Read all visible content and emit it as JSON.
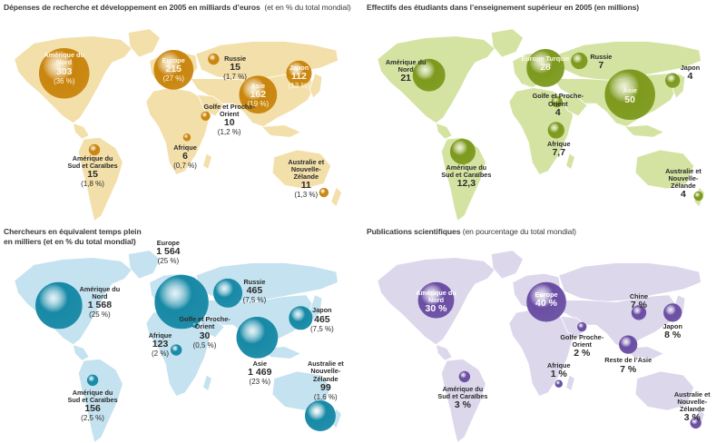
{
  "maps": [
    {
      "title": "Dépenses de recherche et développement en 2005 en milliards d’euros",
      "subtitle": "(et en % du total mondial)",
      "land_color": "#f3dfa9",
      "bubble_color": "#c9850e",
      "items": [
        {
          "name": "Amérique du Nord",
          "value": "303",
          "pct": "(36 %)"
        },
        {
          "name": "Europe",
          "value": "215",
          "pct": "(27 %)"
        },
        {
          "name": "Russie",
          "value": "15",
          "pct": "(1,7 %)"
        },
        {
          "name": "Japon",
          "value": "112",
          "pct": "(13 %)"
        },
        {
          "name": "Asie",
          "value": "162",
          "pct": "(19 %)"
        },
        {
          "name": "Golfe et Proche-Orient",
          "value": "10",
          "pct": "(1,2 %)"
        },
        {
          "name": "Afrique",
          "value": "6",
          "pct": "(0,7 %)"
        },
        {
          "name": "Amérique du Sud et Caraïbes",
          "value": "15",
          "pct": "(1,8 %)"
        },
        {
          "name": "Australie et Nouvelle-Zélande",
          "value": "11",
          "pct": "(1,3 %)"
        }
      ]
    },
    {
      "title": "Effectifs des étudiants dans l’enseignement supérieur en 2005 (en millions)",
      "subtitle": "",
      "land_color": "#d4e3a2",
      "bubble_color": "#7d9a1e",
      "items": [
        {
          "name": "Amérique du Nord",
          "value": "21",
          "pct": ""
        },
        {
          "name": "Europe Turquie",
          "value": "28",
          "pct": ""
        },
        {
          "name": "Russie",
          "value": "7",
          "pct": ""
        },
        {
          "name": "Japon",
          "value": "4",
          "pct": ""
        },
        {
          "name": "Asie",
          "value": "50",
          "pct": ""
        },
        {
          "name": "Golfe et Proche-Orient",
          "value": "4",
          "pct": ""
        },
        {
          "name": "Afrique",
          "value": "7,7",
          "pct": ""
        },
        {
          "name": "Amérique du Sud et Caraïbes",
          "value": "12,3",
          "pct": ""
        },
        {
          "name": "Australie et Nouvelle-Zélande",
          "value": "4",
          "pct": ""
        }
      ]
    },
    {
      "title": "Chercheurs en équivalent temps plein",
      "subtitle": "en milliers (et en % du total mondial)",
      "land_color": "#c4e2ef",
      "bubble_color": "#1789a6",
      "items": [
        {
          "name": "Amérique du Nord",
          "value": "1 568",
          "pct": "(25 %)"
        },
        {
          "name": "Europe",
          "value": "1 564",
          "pct": "(25 %)"
        },
        {
          "name": "Russie",
          "value": "465",
          "pct": "(7,5 %)"
        },
        {
          "name": "Japon",
          "value": "465",
          "pct": "(7,5 %)"
        },
        {
          "name": "Asie",
          "value": "1 469",
          "pct": "(23 %)"
        },
        {
          "name": "Golfe et Proche-Orient",
          "value": "30",
          "pct": "(0,5 %)"
        },
        {
          "name": "Afrique",
          "value": "123",
          "pct": "(2 %)"
        },
        {
          "name": "Amérique du Sud et Caraïbes",
          "value": "156",
          "pct": "(2,5 %)"
        },
        {
          "name": "Australie et Nouvelle-Zélande",
          "value": "99",
          "pct": "(1,6 %)"
        }
      ]
    },
    {
      "title": "Publications scientifiques",
      "subtitle": "(en pourcentage du total mondial)",
      "land_color": "#ddd7ec",
      "bubble_color": "#6a4ea3",
      "items": [
        {
          "name": "Amérique du Nord",
          "value": "30 %",
          "pct": ""
        },
        {
          "name": "Europe",
          "value": "40 %",
          "pct": ""
        },
        {
          "name": "Chine",
          "value": "7 %",
          "pct": ""
        },
        {
          "name": "Japon",
          "value": "8 %",
          "pct": ""
        },
        {
          "name": "Reste de l’Asie",
          "value": "7 %",
          "pct": ""
        },
        {
          "name": "Golfe Proche-Orient",
          "value": "2 %",
          "pct": ""
        },
        {
          "name": "Afrique",
          "value": "1 %",
          "pct": ""
        },
        {
          "name": "Amérique du Sud et Caraïbes",
          "value": "3 %",
          "pct": ""
        },
        {
          "name": "Australie et Nouvelle-Zélande",
          "value": "3 %",
          "pct": ""
        }
      ]
    }
  ]
}
